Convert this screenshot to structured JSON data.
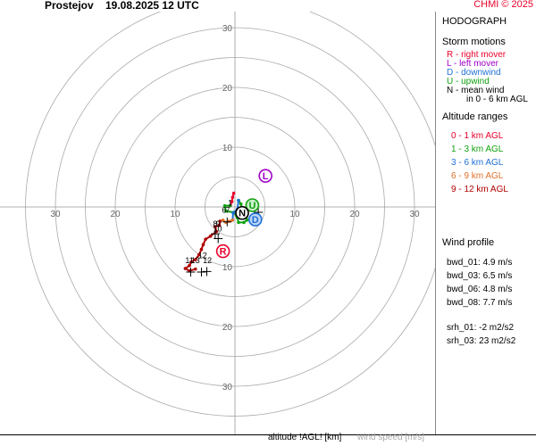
{
  "header": {
    "location": "Prostejov",
    "datetime": "19.08.2025 12 UTC",
    "credit": "CHMI © 2025"
  },
  "footer": {
    "altitude_label": "altitude !AGL! [km]",
    "speed_label": "wind speed [m/s]"
  },
  "legend": {
    "title": "HODOGRAPH",
    "storm_title": "Storm motions",
    "storm_items": [
      {
        "text": "R - right mover",
        "color": "#e8002a"
      },
      {
        "text": "L - left mover",
        "color": "#a000c8"
      },
      {
        "text": "D - downwind",
        "color": "#1f6fd6"
      },
      {
        "text": "U - upwind",
        "color": "#10a010"
      },
      {
        "text": "N - mean wind",
        "color": "#000000"
      },
      {
        "text": "in 0 - 6 km AGL",
        "color": "#000000"
      }
    ],
    "alt_title": "Altitude ranges",
    "alt_items": [
      {
        "text": "0 - 1 km AGL",
        "color": "#e8002a"
      },
      {
        "text": "1 - 3 km AGL",
        "color": "#10a010"
      },
      {
        "text": "3 - 6 km AGL",
        "color": "#1f6fd6"
      },
      {
        "text": "6 - 9 km AGL",
        "color": "#e07028"
      },
      {
        "text": "9 - 12 km AGL",
        "color": "#b00000"
      }
    ],
    "profile_title": "Wind profile",
    "profile_items": [
      "bwd_01: 4.9 m/s",
      "bwd_03: 6.5 m/s",
      "bwd_06: 4.8 m/s",
      "bwd_08: 7.7 m/s"
    ],
    "srh_items": [
      "srh_01: -2 m2/s2",
      "srh_03: 23 m2/s2"
    ]
  },
  "chart_data": {
    "type": "hodograph",
    "units": "m/s",
    "rings": [
      5,
      10,
      15,
      20,
      25,
      30,
      35
    ],
    "axis_labels": [
      "10",
      "20",
      "30"
    ],
    "segments": [
      {
        "range": "0 - 1 km AGL",
        "color": "#e8002a",
        "points": [
          [
            -0.2,
            2.3
          ],
          [
            -0.4,
            1.6
          ],
          [
            -0.5,
            0.9
          ],
          [
            -0.8,
            0.2
          ]
        ]
      },
      {
        "range": "1 - 3 km AGL",
        "color": "#10a010",
        "points": [
          [
            -0.8,
            0.2
          ],
          [
            -1.7,
            0.2
          ],
          [
            -1.5,
            -0.7
          ],
          [
            -0.2,
            -0.9
          ],
          [
            0.4,
            -1.8
          ],
          [
            0.6,
            -2.6
          ],
          [
            1.5,
            -2.6
          ],
          [
            2.0,
            -2.2
          ],
          [
            2.0,
            -1.4
          ],
          [
            1.5,
            -0.9
          ],
          [
            1.2,
            -0.4
          ],
          [
            1.0,
            0.5
          ],
          [
            0.6,
            1.1
          ]
        ]
      },
      {
        "range": "3 - 6 km AGL",
        "color": "#1f6fd6",
        "points": [
          [
            0.6,
            1.1
          ],
          [
            0.4,
            -0.4
          ],
          [
            -0.3,
            -1.0
          ],
          [
            -0.4,
            -2.2
          ]
        ]
      },
      {
        "range": "6 - 9 km AGL",
        "color": "#e07028",
        "points": [
          [
            -0.4,
            -2.2
          ],
          [
            -1.0,
            -2.4
          ],
          [
            -1.5,
            -2.6
          ],
          [
            -2.0,
            -2.2
          ],
          [
            -2.5,
            -2.4
          ]
        ]
      },
      {
        "range": "9 - 12 km AGL",
        "color": "#b00000",
        "points": [
          [
            -2.5,
            -2.4
          ],
          [
            -2.6,
            -3.1
          ],
          [
            -3.3,
            -3.3
          ],
          [
            -3.1,
            -4.1
          ],
          [
            -4.1,
            -4.9
          ],
          [
            -4.9,
            -5.4
          ],
          [
            -5.3,
            -6.3
          ],
          [
            -5.6,
            -7.1
          ],
          [
            -6.0,
            -8.0
          ],
          [
            -6.6,
            -8.8
          ],
          [
            -7.3,
            -9.2
          ],
          [
            -7.6,
            -9.8
          ],
          [
            -8.3,
            -10.3
          ],
          [
            -7.6,
            -10.7
          ],
          [
            -6.6,
            -10.4
          ]
        ]
      }
    ],
    "km_marks": [
      {
        "label": "1",
        "x": -0.8,
        "y": 0.2
      },
      {
        "label": "3",
        "x": 2.3,
        "y": 0.1
      },
      {
        "label": "6",
        "x": -1.8,
        "y": -1.0
      },
      {
        "label": "7",
        "x": -1.2,
        "y": -1.0
      },
      {
        "label": "8",
        "x": -3.3,
        "y": -3.3
      },
      {
        "label": "9",
        "x": -2.8,
        "y": -3.3
      },
      {
        "label": "10",
        "x": -2.9,
        "y": -4.1
      },
      {
        "label": "11",
        "x": -7.6,
        "y": -9.4
      },
      {
        "label": "12",
        "x": -5.4,
        "y": -8.6
      },
      {
        "label": "12",
        "x": -4.6,
        "y": -9.4
      },
      {
        "label": "13",
        "x": -6.6,
        "y": -9.4
      }
    ],
    "crosses": [
      {
        "x": 3.9,
        "y": -0.9
      },
      {
        "x": -1.3,
        "y": -2.5
      },
      {
        "x": -3.3,
        "y": -4.5
      },
      {
        "x": -2.8,
        "y": -5.3
      },
      {
        "x": -5.6,
        "y": -10.9
      },
      {
        "x": -7.4,
        "y": -10.9
      },
      {
        "x": -4.7,
        "y": -10.8
      }
    ],
    "storm_markers": [
      {
        "label": "R",
        "x": -2.0,
        "y": -7.4,
        "color": "#e8002a",
        "fill": "#ffffff"
      },
      {
        "label": "L",
        "x": 5.1,
        "y": 5.2,
        "color": "#a000c8",
        "fill": "#ffffff"
      },
      {
        "label": "D",
        "x": 3.4,
        "y": -2.1,
        "color": "#1f6fd6",
        "fill": "#bcd6f5"
      },
      {
        "label": "U",
        "x": 2.9,
        "y": 0.3,
        "color": "#10a010",
        "fill": "#c8f0c8"
      },
      {
        "label": "N",
        "x": 1.2,
        "y": -1.0,
        "color": "#000000",
        "fill": "#ffffff"
      }
    ]
  }
}
